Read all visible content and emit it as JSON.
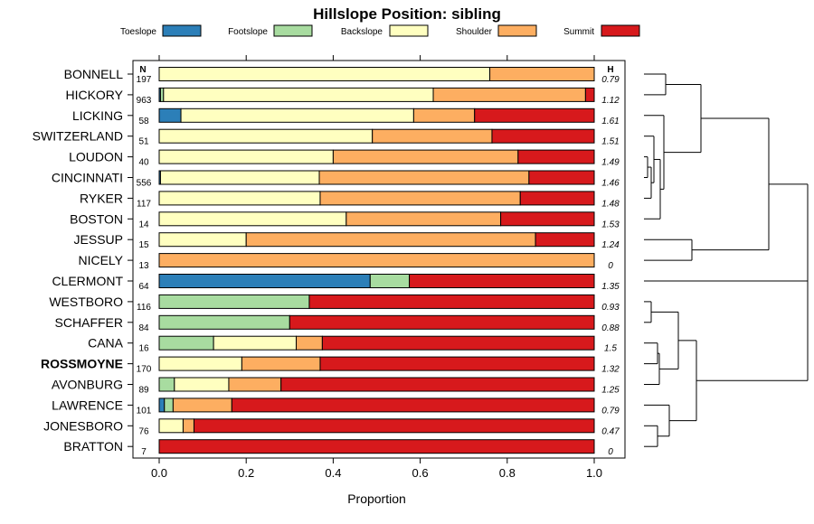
{
  "chart_data": {
    "type": "bar",
    "orientation": "horizontal-stacked",
    "title": "Hillslope Position: sibling",
    "xlabel": "Proportion",
    "xlim": [
      0,
      1
    ],
    "x_ticks": [
      "0.0",
      "0.2",
      "0.4",
      "0.6",
      "0.8",
      "1.0"
    ],
    "x_tick_values": [
      0,
      0.2,
      0.4,
      0.6,
      0.8,
      1.0
    ],
    "n_header": "N",
    "h_header": "H",
    "series": [
      {
        "name": "Toeslope",
        "color": "#2c7fb8"
      },
      {
        "name": "Footslope",
        "color": "#a8dca0"
      },
      {
        "name": "Backslope",
        "color": "#ffffc0"
      },
      {
        "name": "Shoulder",
        "color": "#fdae61"
      },
      {
        "name": "Summit",
        "color": "#d7191c"
      }
    ],
    "categories": [
      {
        "name": "BONNELL",
        "n": "197",
        "h": "0.79",
        "values": [
          0,
          0,
          0.76,
          0.24,
          0
        ],
        "bold": false
      },
      {
        "name": "HICKORY",
        "n": "963",
        "h": "1.12",
        "values": [
          0.003,
          0.007,
          0.62,
          0.35,
          0.02
        ],
        "bold": false
      },
      {
        "name": "LICKING",
        "n": "58",
        "h": "1.61",
        "values": [
          0.05,
          0,
          0.535,
          0.14,
          0.275
        ],
        "bold": false
      },
      {
        "name": "SWITZERLAND",
        "n": "51",
        "h": "1.51",
        "values": [
          0,
          0,
          0.49,
          0.275,
          0.235
        ],
        "bold": false
      },
      {
        "name": "LOUDON",
        "n": "40",
        "h": "1.49",
        "values": [
          0,
          0,
          0.4,
          0.425,
          0.175
        ],
        "bold": false
      },
      {
        "name": "CINCINNATI",
        "n": "556",
        "h": "1.46",
        "values": [
          0.003,
          0,
          0.365,
          0.482,
          0.15
        ],
        "bold": false
      },
      {
        "name": "RYKER",
        "n": "117",
        "h": "1.48",
        "values": [
          0,
          0,
          0.37,
          0.46,
          0.17
        ],
        "bold": false
      },
      {
        "name": "BOSTON",
        "n": "14",
        "h": "1.53",
        "values": [
          0,
          0,
          0.43,
          0.355,
          0.215
        ],
        "bold": false
      },
      {
        "name": "JESSUP",
        "n": "15",
        "h": "1.24",
        "values": [
          0,
          0,
          0.2,
          0.665,
          0.135
        ],
        "bold": false
      },
      {
        "name": "NICELY",
        "n": "13",
        "h": "0",
        "values": [
          0,
          0,
          0,
          1.0,
          0
        ],
        "bold": false
      },
      {
        "name": "CLERMONT",
        "n": "64",
        "h": "1.35",
        "values": [
          0.485,
          0.09,
          0,
          0,
          0.425
        ],
        "bold": false
      },
      {
        "name": "WESTBORO",
        "n": "116",
        "h": "0.93",
        "values": [
          0,
          0.345,
          0,
          0,
          0.655
        ],
        "bold": false
      },
      {
        "name": "SCHAFFER",
        "n": "84",
        "h": "0.88",
        "values": [
          0,
          0.3,
          0,
          0,
          0.7
        ],
        "bold": false
      },
      {
        "name": "CANA",
        "n": "16",
        "h": "1.5",
        "values": [
          0,
          0.125,
          0.19,
          0.06,
          0.625
        ],
        "bold": false
      },
      {
        "name": "ROSSMOYNE",
        "n": "170",
        "h": "1.32",
        "values": [
          0,
          0,
          0.19,
          0.18,
          0.63
        ],
        "bold": true
      },
      {
        "name": "AVONBURG",
        "n": "89",
        "h": "1.25",
        "values": [
          0,
          0.035,
          0.125,
          0.12,
          0.72
        ],
        "bold": false
      },
      {
        "name": "LAWRENCE",
        "n": "101",
        "h": "0.79",
        "values": [
          0.012,
          0.02,
          0,
          0.135,
          0.833
        ],
        "bold": false
      },
      {
        "name": "JONESBORO",
        "n": "76",
        "h": "0.47",
        "values": [
          0,
          0,
          0.055,
          0.025,
          0.92
        ],
        "bold": false
      },
      {
        "name": "BRATTON",
        "n": "7",
        "h": "0",
        "values": [
          0,
          0,
          0,
          0,
          1.0
        ],
        "bold": false
      }
    ],
    "dendrogram": "hierarchical clustering tree of soil series (right side)"
  }
}
